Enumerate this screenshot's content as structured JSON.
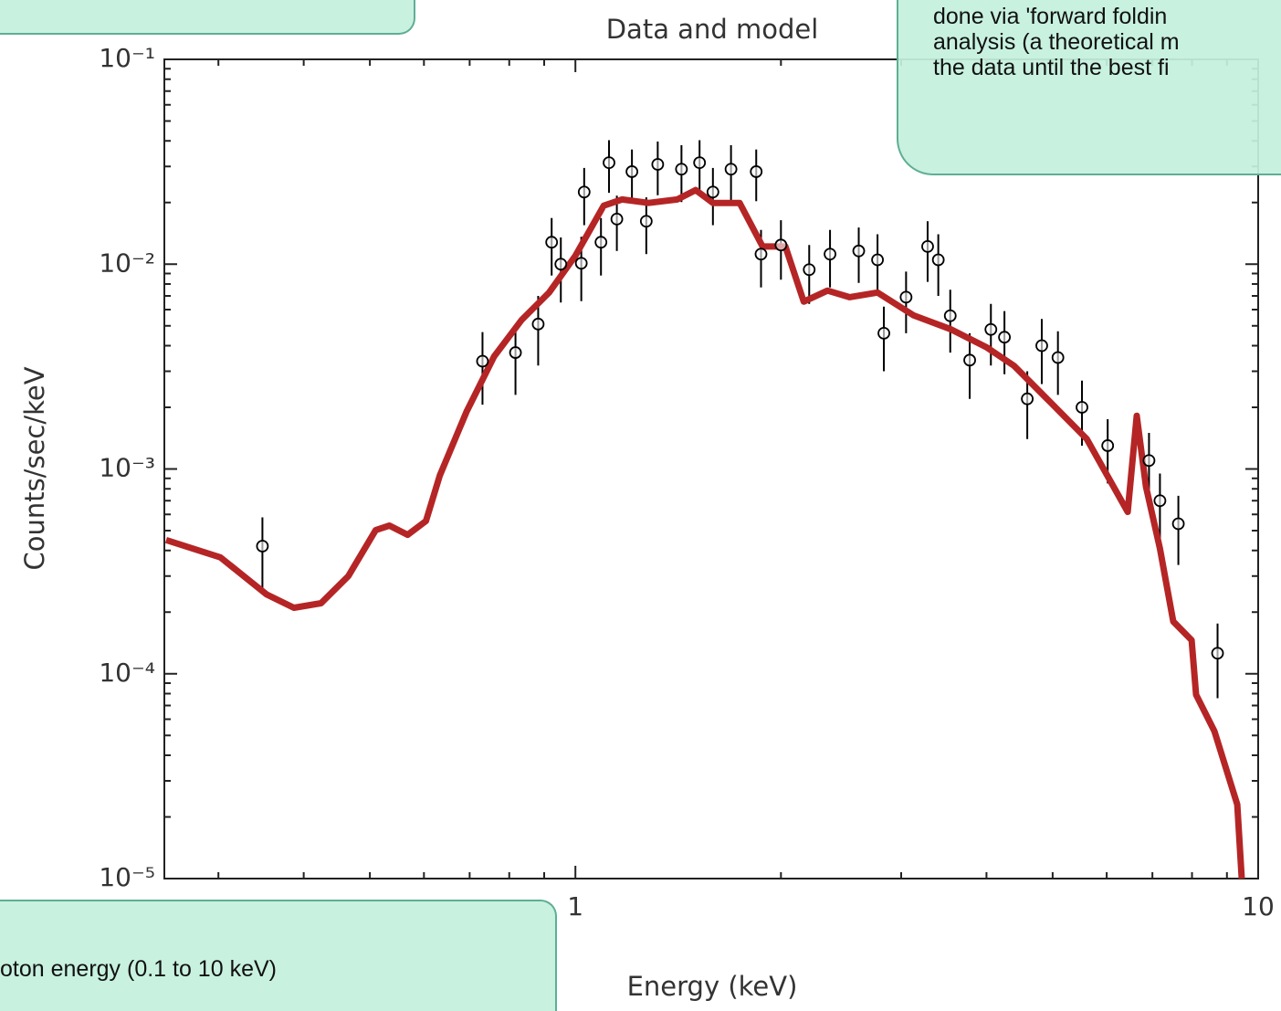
{
  "chart_data": {
    "type": "spectrum",
    "title": "Data and model",
    "x_label": "Energy (keV)",
    "y_label": "Counts/sec/keV",
    "xlog": true,
    "ylog": true,
    "xlim": [
      0.25,
      10
    ],
    "ylim": [
      1e-05,
      0.1
    ],
    "xticks": [
      1,
      10
    ],
    "xminorticks": [
      0.3,
      0.4,
      0.5,
      0.6,
      0.7,
      0.8,
      0.9,
      2,
      3,
      4,
      5,
      6,
      7,
      8,
      9
    ],
    "yticks": [
      {
        "value": 0.1,
        "label": "10⁻¹"
      },
      {
        "value": 0.01,
        "label": "10⁻²"
      },
      {
        "value": 0.001,
        "label": "10⁻³"
      },
      {
        "value": 0.0001,
        "label": "10⁻⁴"
      },
      {
        "value": 1e-05,
        "label": "10⁻⁵"
      }
    ],
    "yminorticks": [
      2e-05,
      3e-05,
      4e-05,
      5e-05,
      6e-05,
      7e-05,
      8e-05,
      9e-05,
      0.0002,
      0.0003,
      0.0004,
      0.0005,
      0.0006,
      0.0007,
      0.0008,
      0.0009,
      0.002,
      0.003,
      0.004,
      0.005,
      0.006,
      0.007,
      0.008,
      0.009,
      0.02,
      0.03,
      0.04,
      0.05,
      0.06,
      0.07,
      0.08,
      0.09
    ],
    "model": {
      "color": "#b52525",
      "x": [
        0.2515,
        0.302,
        0.353,
        0.387,
        0.424,
        0.465,
        0.51,
        0.534,
        0.568,
        0.604,
        0.633,
        0.693,
        0.76,
        0.834,
        0.915,
        1.0,
        1.1,
        1.17,
        1.28,
        1.41,
        1.5,
        1.59,
        1.74,
        1.88,
        2.03,
        2.16,
        2.34,
        2.52,
        2.77,
        3.13,
        3.54,
        4.0,
        4.39,
        4.96,
        5.61,
        6.44,
        6.64,
        6.85,
        7.18,
        7.51,
        7.99,
        8.11,
        8.63,
        9.32,
        9.46
      ],
      "values": [
        0.00045,
        0.00037,
        0.000244,
        0.00021,
        0.000221,
        0.0003,
        0.000503,
        0.000529,
        0.000477,
        0.000557,
        0.00093,
        0.00191,
        0.00354,
        0.00534,
        0.00727,
        0.011,
        0.0193,
        0.0207,
        0.0199,
        0.0207,
        0.023,
        0.0199,
        0.0199,
        0.0122,
        0.0122,
        0.00656,
        0.00743,
        0.0069,
        0.00727,
        0.00562,
        0.00482,
        0.00393,
        0.00319,
        0.00212,
        0.0014,
        0.000617,
        0.00182,
        0.00082,
        0.000409,
        0.00018,
        0.000146,
        7.9e-05,
        5.24e-05,
        2.3e-05,
        1e-05
      ]
    },
    "data": {
      "color": "#000000",
      "x": [
        0.348,
        0.731,
        0.817,
        0.882,
        0.923,
        0.952,
        1.02,
        1.03,
        1.09,
        1.12,
        1.15,
        1.21,
        1.27,
        1.32,
        1.43,
        1.52,
        1.59,
        1.69,
        1.84,
        1.87,
        2.0,
        2.2,
        2.36,
        2.6,
        2.77,
        2.83,
        3.05,
        3.28,
        3.4,
        3.54,
        3.78,
        4.06,
        4.25,
        4.59,
        4.82,
        5.09,
        5.52,
        6.02,
        6.92,
        7.18,
        7.64,
        8.72
      ],
      "values": [
        0.00042,
        0.00336,
        0.0037,
        0.0051,
        0.0128,
        0.01,
        0.0101,
        0.0225,
        0.0128,
        0.0313,
        0.0166,
        0.0283,
        0.0162,
        0.0307,
        0.0291,
        0.0313,
        0.0225,
        0.0291,
        0.0283,
        0.0112,
        0.0124,
        0.0094,
        0.0112,
        0.0116,
        0.0105,
        0.0046,
        0.0069,
        0.0122,
        0.0105,
        0.0056,
        0.0034,
        0.0048,
        0.0044,
        0.0022,
        0.004,
        0.0035,
        0.002,
        0.0013,
        0.0011,
        0.0007,
        0.00054,
        0.000126
      ],
      "errors": [
        0.00016,
        0.0013,
        0.0014,
        0.0019,
        0.004,
        0.0035,
        0.0035,
        0.007,
        0.004,
        0.009,
        0.005,
        0.008,
        0.005,
        0.009,
        0.009,
        0.009,
        0.007,
        0.009,
        0.008,
        0.0035,
        0.004,
        0.003,
        0.0035,
        0.0035,
        0.0035,
        0.0016,
        0.0023,
        0.004,
        0.0035,
        0.0019,
        0.0012,
        0.0016,
        0.0015,
        0.0008,
        0.0014,
        0.0012,
        0.0007,
        0.00045,
        0.0004,
        0.00025,
        0.0002,
        5e-05
      ]
    }
  },
  "callouts": {
    "top_right": [
      "done via 'forward foldin",
      "analysis (a theoretical m",
      "the data until the best fi"
    ],
    "bottom_left": [
      "oton energy (0.1 to 10 keV)"
    ]
  }
}
